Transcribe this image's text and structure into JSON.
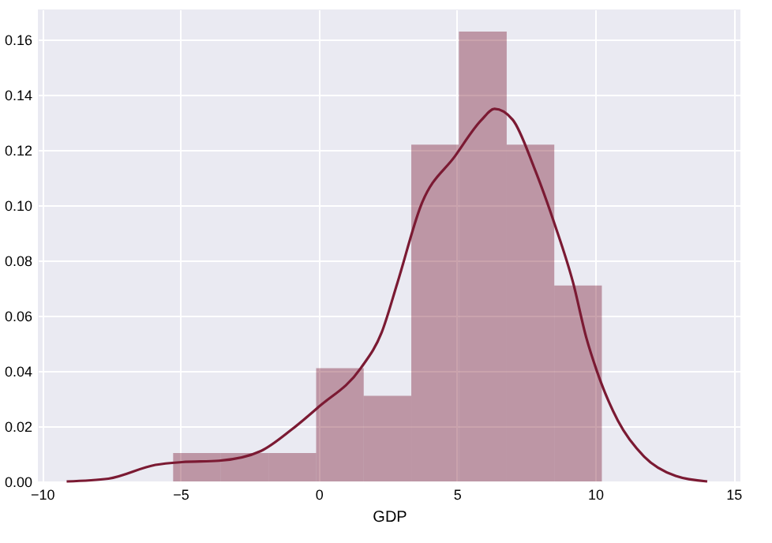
{
  "chart_data": {
    "type": "histogram",
    "xlabel": "GDP",
    "color": "#7b1a33",
    "bins": [
      -5.26,
      -3.54,
      -1.81,
      -0.09,
      1.63,
      3.35,
      5.07,
      6.8,
      8.52,
      10.24
    ],
    "values": [
      0.0103,
      0.0103,
      0.0103,
      0.041,
      0.031,
      0.122,
      0.163,
      0.122,
      0.071
    ],
    "series": [
      {
        "type": "line",
        "color": "#7b1a33",
        "x": [
          -9.11,
          -7.6,
          -5.9,
          -4.94,
          -3.6,
          -2.09,
          -0.95,
          0,
          1.52,
          2.28,
          2.85,
          3.7,
          4.94,
          5.89,
          6.36,
          7.02,
          7.78,
          8.54,
          9.2,
          9.68,
          10.06,
          10.82,
          11.77,
          12.91,
          14.05
        ],
        "values": [
          0,
          0.001,
          0.006,
          0.007,
          0.0075,
          0.011,
          0.019,
          0.027,
          0.041,
          0.054,
          0.072,
          0.1,
          0.118,
          0.131,
          0.135,
          0.131,
          0.114,
          0.093,
          0.072,
          0.052,
          0.04,
          0.022,
          0.009,
          0.002,
          0
        ]
      }
    ],
    "xlim": [
      -10.15,
      15.25
    ],
    "ylim": [
      0,
      0.171
    ],
    "xticks": [
      -10,
      -5,
      0,
      5,
      10,
      15
    ],
    "yticks": [
      {
        "value": 0,
        "label": "0.00"
      },
      0.02,
      0.04,
      0.06,
      0.08,
      {
        "value": 0.1,
        "label": "0.10"
      },
      0.12,
      0.14,
      0.16
    ],
    "grid": true
  }
}
